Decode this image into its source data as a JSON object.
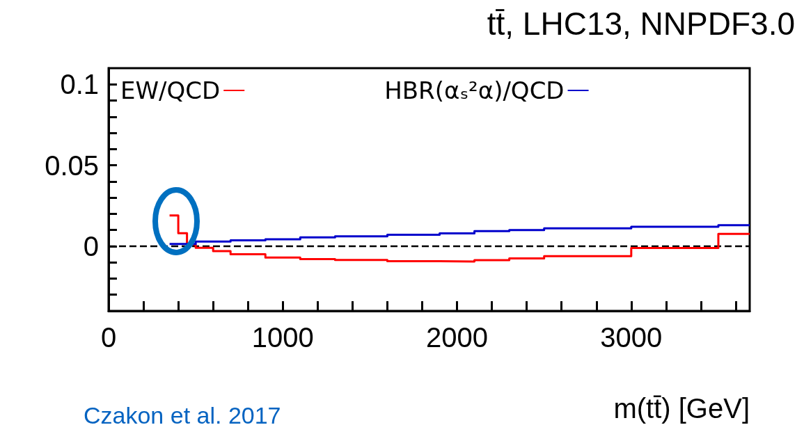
{
  "chart_data": {
    "type": "step",
    "title": "tt̄, LHC13, NNPDF3.0",
    "xlabel": "m(tt̄) [GeV]",
    "annotations": [
      "Czakon et al. 2017"
    ],
    "series": [
      {
        "name": "EW/QCD",
        "color": "#ff0000",
        "x": [
          350,
          400,
          450,
          500,
          600,
          700,
          900,
          1100,
          1300,
          1600,
          1900,
          2100,
          2300,
          2500,
          3000,
          3500,
          3680
        ],
        "values": [
          0.019,
          0.008,
          0.001,
          -0.001,
          -0.003,
          -0.005,
          -0.007,
          -0.008,
          -0.0085,
          -0.0093,
          -0.0095,
          -0.0086,
          -0.0076,
          -0.0061,
          -0.0011,
          0.0076,
          0.0076
        ]
      },
      {
        "name": "HBR(αₛ²α)/QCD",
        "color": "#0000cc",
        "x": [
          350,
          500,
          700,
          900,
          1100,
          1300,
          1600,
          1900,
          2100,
          2300,
          2500,
          3000,
          3500,
          3680
        ],
        "values": [
          0.0014,
          0.0029,
          0.0036,
          0.0043,
          0.0054,
          0.0061,
          0.0071,
          0.0079,
          0.0093,
          0.01,
          0.011,
          0.012,
          0.013,
          0.013
        ]
      }
    ],
    "xlim": [
      0,
      3680
    ],
    "xticks": [
      0,
      {
        "value": 200,
        "label": null
      },
      {
        "value": 400,
        "label": null
      },
      {
        "value": 600,
        "label": null
      },
      {
        "value": 800,
        "label": null
      },
      1000,
      {
        "value": 1200,
        "label": null
      },
      {
        "value": 1400,
        "label": null
      },
      {
        "value": 1600,
        "label": null
      },
      {
        "value": 1800,
        "label": null
      },
      2000,
      {
        "value": 2200,
        "label": null
      },
      {
        "value": 2400,
        "label": null
      },
      {
        "value": 2600,
        "label": null
      },
      {
        "value": 2800,
        "label": null
      },
      3000,
      {
        "value": 3200,
        "label": null
      },
      {
        "value": 3400,
        "label": null
      },
      {
        "value": 3600,
        "label": null
      }
    ],
    "ylim": [
      -0.04,
      0.11
    ],
    "yticks": [
      {
        "value": -0.04,
        "label": null
      },
      {
        "value": -0.03,
        "label": null
      },
      {
        "value": -0.02,
        "label": null
      },
      {
        "value": -0.01,
        "label": null
      },
      0,
      {
        "value": 0.01,
        "label": null
      },
      {
        "value": 0.02,
        "label": null
      },
      {
        "value": 0.03,
        "label": null
      },
      {
        "value": 0.04,
        "label": null
      },
      0.05,
      {
        "value": 0.06,
        "label": null
      },
      {
        "value": 0.07,
        "label": null
      },
      {
        "value": 0.08,
        "label": null
      },
      {
        "value": 0.09,
        "label": null
      },
      0.1
    ],
    "ref_lines": [
      {
        "axis": "y",
        "value": 0,
        "color": "#000000",
        "line_style": "dashed"
      }
    ],
    "legend": "top",
    "marker": "none",
    "line_style": "solid",
    "grid": false
  }
}
